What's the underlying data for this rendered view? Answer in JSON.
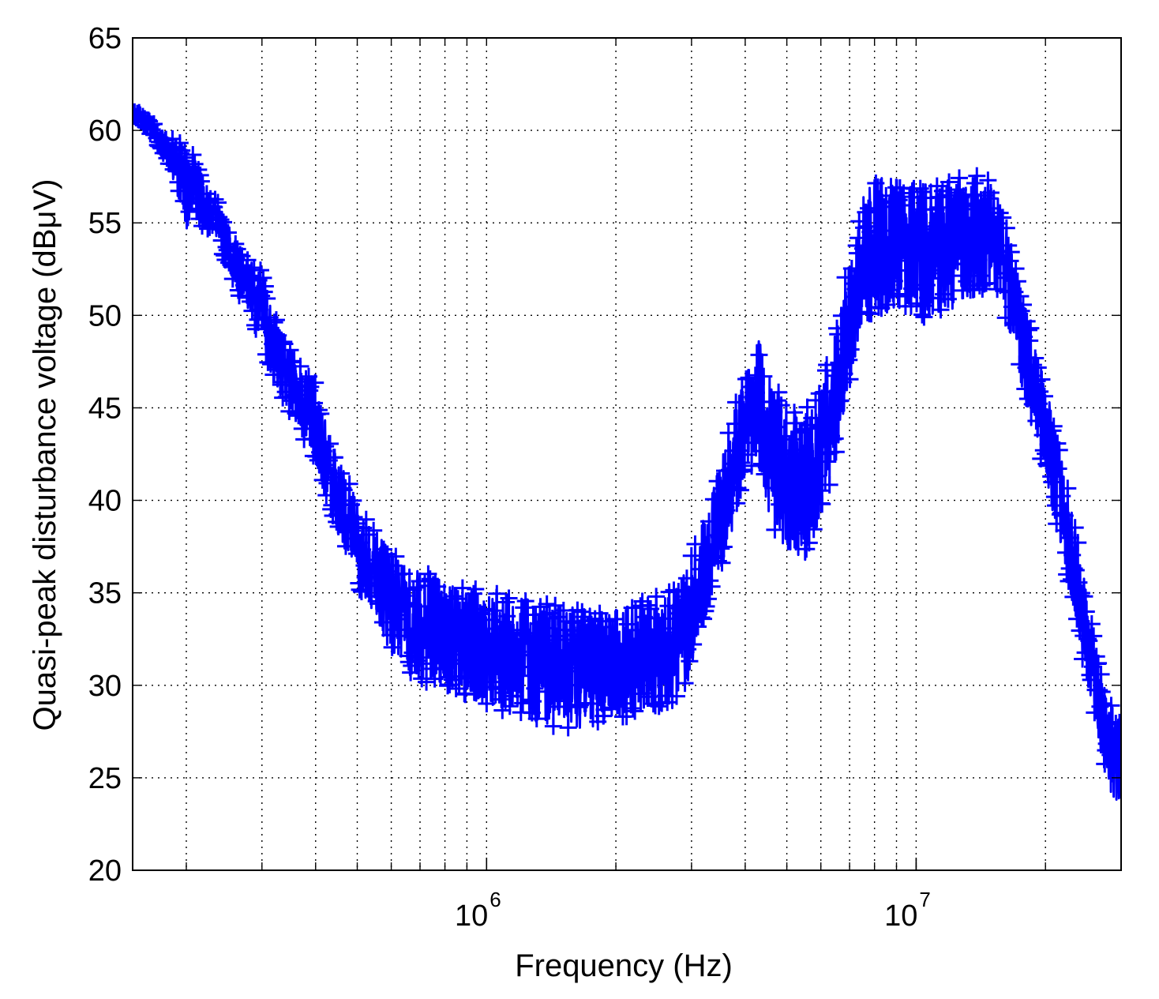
{
  "colors": {
    "series": "#0000ff",
    "axes": "#000000",
    "grid": "#000000",
    "background": "#ffffff"
  },
  "chart_data": {
    "type": "line",
    "title": "",
    "xlabel": "Frequency (Hz)",
    "ylabel": "Quasi-peak disturbance voltage (dBμV)",
    "x_scale": "log",
    "xlim": [
      150000,
      30000000
    ],
    "ylim": [
      20,
      65
    ],
    "grid": true,
    "grid_style": "dotted",
    "marker": "+",
    "legend": null,
    "x_ticks": [
      {
        "value": 1000000,
        "base": "10",
        "exponent": "6"
      },
      {
        "value": 10000000,
        "base": "10",
        "exponent": "7"
      }
    ],
    "y_ticks": [
      "20",
      "25",
      "30",
      "35",
      "40",
      "45",
      "50",
      "55",
      "60",
      "65"
    ],
    "series": [
      {
        "x": [
          150000,
          160000,
          170000,
          180000,
          190000,
          200000,
          210000,
          220000,
          230000,
          240000,
          250000,
          260000,
          270000,
          280000,
          290000,
          300000,
          310000,
          330000,
          360000,
          400000,
          420000,
          450000,
          480000,
          500000,
          550000,
          600000,
          650000,
          700000,
          800000,
          900000,
          1000000,
          1200000,
          1500000,
          1800000,
          2000000,
          2500000,
          2800000,
          3000000,
          3300000,
          3600000,
          4000000,
          4300000,
          4600000,
          5000000,
          5500000,
          6000000,
          6500000,
          7000000,
          7500000,
          8000000,
          9000000,
          10000000,
          11000000,
          12000000,
          13000000,
          14000000,
          15000000,
          16000000,
          18000000,
          20000000,
          22000000,
          25000000,
          28000000,
          30000000
        ],
        "y": [
          61,
          60.5,
          59.8,
          59,
          58,
          56.5,
          57.5,
          56,
          55.5,
          55,
          54,
          53,
          52,
          51.5,
          50.5,
          51,
          49,
          47.5,
          46,
          44.5,
          42.5,
          40.5,
          39,
          37.5,
          36,
          35,
          34,
          33,
          32.5,
          32,
          32,
          31.5,
          31,
          31,
          31,
          32,
          32,
          34,
          37,
          40,
          44,
          45.5,
          43,
          42,
          41,
          43,
          46,
          50,
          53,
          54,
          54.5,
          54,
          54,
          54.5,
          55,
          55.5,
          55,
          53,
          48,
          44,
          39.5,
          33,
          27,
          25.5
        ],
        "band_upper": [
          61.2,
          60.8,
          60.3,
          59.8,
          59.5,
          59.5,
          58.5,
          57.5,
          56.5,
          56,
          55,
          54,
          53.5,
          53,
          53,
          52.5,
          51,
          49.5,
          48,
          46.5,
          44.5,
          42.5,
          41,
          40,
          38.5,
          37.5,
          37,
          36.5,
          36,
          35.5,
          35.5,
          35,
          34.5,
          34.5,
          34.5,
          35,
          35.5,
          37.5,
          40,
          43.5,
          47.5,
          49,
          47,
          45.5,
          45,
          46.5,
          49.5,
          53.5,
          56.5,
          57.5,
          57.8,
          57.3,
          57.3,
          57.5,
          57.8,
          58,
          57.5,
          55.5,
          50.5,
          46.5,
          42,
          35.5,
          29.5,
          28
        ],
        "band_lower": [
          60.8,
          60.2,
          59.3,
          58.2,
          56.5,
          54.5,
          55.5,
          54.5,
          54.5,
          53.5,
          52.5,
          51.5,
          50.5,
          50,
          49,
          49,
          47,
          45.5,
          44,
          42,
          40,
          38,
          36.5,
          35,
          33,
          31.5,
          30.5,
          30,
          29.5,
          29,
          28.5,
          28,
          27.5,
          27.5,
          28,
          28.5,
          28.5,
          30.5,
          34,
          37,
          40.5,
          41.5,
          38.5,
          37,
          36.5,
          38.5,
          42,
          46,
          49.5,
          50,
          50,
          49.5,
          49.5,
          50,
          50.5,
          51,
          51.5,
          50,
          45,
          41,
          36.5,
          30,
          24,
          23
        ]
      }
    ]
  }
}
